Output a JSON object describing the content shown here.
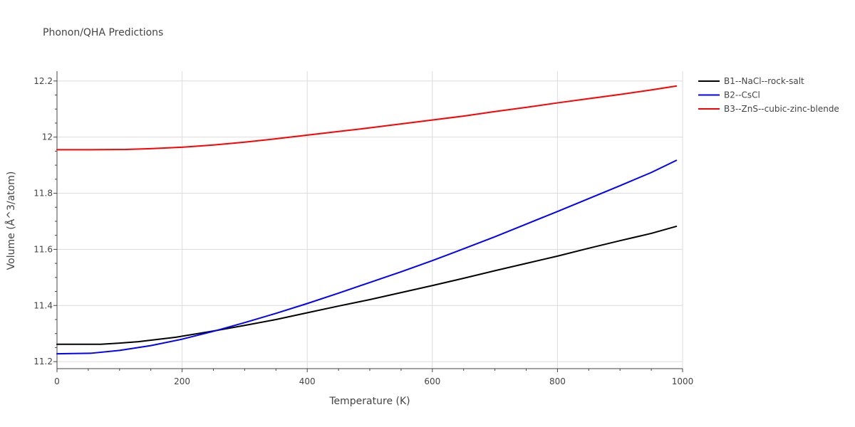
{
  "chart_data": {
    "type": "line",
    "title": "Phonon/QHA Predictions",
    "xlabel": "Temperature (K)",
    "ylabel": "Volume (Å^3/atom)",
    "xlim": [
      0,
      1000
    ],
    "ylim": [
      11.175,
      12.235
    ],
    "xticks": [
      0,
      200,
      400,
      600,
      800,
      1000
    ],
    "yticks": [
      11.2,
      11.4,
      11.6,
      11.8,
      12.0,
      12.2
    ],
    "xtick_labels": [
      "0",
      "200",
      "400",
      "600",
      "800",
      "1000"
    ],
    "ytick_labels": [
      "11.2",
      "11.4",
      "11.6",
      "11.8",
      "12",
      "12.2"
    ],
    "grid": true,
    "legend_position": "right",
    "series": [
      {
        "name": "B1--NaCl--rock-salt",
        "color": "#000000",
        "x": [
          0,
          30,
          70,
          100,
          130,
          160,
          190,
          220,
          250,
          300,
          350,
          400,
          450,
          500,
          550,
          600,
          650,
          700,
          750,
          800,
          850,
          900,
          950,
          990
        ],
        "y": [
          11.262,
          11.262,
          11.262,
          11.266,
          11.271,
          11.279,
          11.287,
          11.298,
          11.309,
          11.329,
          11.35,
          11.374,
          11.398,
          11.421,
          11.446,
          11.471,
          11.497,
          11.524,
          11.55,
          11.576,
          11.604,
          11.631,
          11.657,
          11.682
        ]
      },
      {
        "name": "B2--CsCl",
        "color": "#0000ff",
        "x": [
          0,
          25,
          55,
          100,
          150,
          200,
          250,
          300,
          350,
          400,
          450,
          500,
          550,
          600,
          650,
          700,
          750,
          800,
          850,
          900,
          950,
          990
        ],
        "y": [
          11.228,
          11.229,
          11.23,
          11.24,
          11.257,
          11.28,
          11.308,
          11.339,
          11.372,
          11.407,
          11.444,
          11.482,
          11.52,
          11.56,
          11.602,
          11.645,
          11.69,
          11.735,
          11.781,
          11.827,
          11.874,
          11.917
        ]
      },
      {
        "name": "B3--ZnS--cubic-zinc-blende",
        "color": "#ff0000",
        "x": [
          0,
          50,
          110,
          150,
          200,
          250,
          300,
          350,
          400,
          450,
          500,
          550,
          600,
          650,
          700,
          750,
          800,
          850,
          900,
          950,
          990
        ],
        "y": [
          11.955,
          11.955,
          11.956,
          11.959,
          11.964,
          11.972,
          11.982,
          11.994,
          12.007,
          12.02,
          12.033,
          12.047,
          12.061,
          12.075,
          12.091,
          12.106,
          12.122,
          12.137,
          12.152,
          12.168,
          12.182
        ]
      }
    ]
  }
}
